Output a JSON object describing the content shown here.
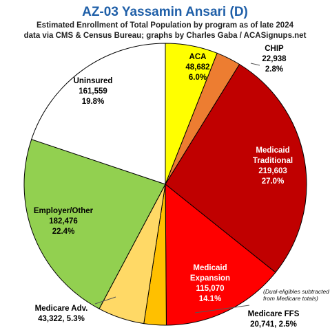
{
  "chart_data": {
    "type": "pie",
    "title": "AZ-03 Yassamin Ansari (D)",
    "subtitle_lines": [
      "Estimated Enrollment of Total Population by program as of late 2024",
      "data via CMS & Census Bureau; graphs by Charles Gaba / ACASignups.net"
    ],
    "note_lines": [
      "(Dual-eligibles subtracted",
      "from Medicare totals)"
    ],
    "title_color": "#1f5fa8",
    "slices": [
      {
        "label": "ACA",
        "value": 48682,
        "value_text": "48,682",
        "percent_text": "6.0%",
        "color": "#ffff00",
        "text_color": "#000000"
      },
      {
        "label": "CHIP",
        "value": 22938,
        "value_text": "22,938",
        "percent_text": "2.8%",
        "color": "#ed7d31",
        "text_color": "#000000"
      },
      {
        "label": "Medicaid Traditional",
        "value": 219603,
        "value_text": "219,603",
        "percent_text": "27.0%",
        "color": "#c00000",
        "text_color": "#ffffff"
      },
      {
        "label": "Medicaid Expansion",
        "value": 115070,
        "value_text": "115,070",
        "percent_text": "14.1%",
        "color": "#ff0000",
        "text_color": "#ffffff"
      },
      {
        "label": "Medicare FFS",
        "value": 20741,
        "value_text": "20,741",
        "percent_text": "2.5%",
        "color": "#ffc000",
        "text_color": "#000000"
      },
      {
        "label": "Medicare Adv.",
        "value": 43322,
        "value_text": "43,322",
        "percent_text": "5.3%",
        "color": "#ffd966",
        "text_color": "#000000"
      },
      {
        "label": "Employer/Other",
        "value": 182476,
        "value_text": "182,476",
        "percent_text": "22.4%",
        "color": "#92d050",
        "text_color": "#000000"
      },
      {
        "label": "Uninsured",
        "value": 161559,
        "value_text": "161,559",
        "percent_text": "19.8%",
        "color": "#ffffff",
        "text_color": "#000000"
      }
    ]
  }
}
